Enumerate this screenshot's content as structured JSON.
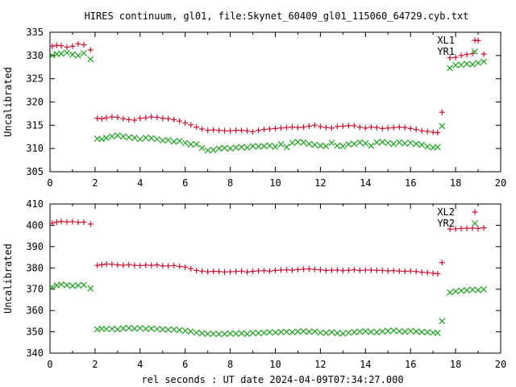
{
  "title": "HIRES continuum, gl01, file:Skynet_60409_gl01_115060_64729.cyb.txt",
  "colors": {
    "red": "#c8102e",
    "green": "#1fa01f"
  },
  "chart_data": [
    {
      "type": "scatter",
      "title": "HIRES continuum, gl01, file:Skynet_60409_gl01_115060_64729.cyb.txt",
      "xlabel": "",
      "ylabel": "Uncalibrated",
      "xlim": [
        0,
        20
      ],
      "ylim": [
        305,
        335
      ],
      "xticks": [
        0,
        2,
        4,
        6,
        8,
        10,
        12,
        14,
        16,
        18,
        20
      ],
      "yticks": [
        305,
        310,
        315,
        320,
        325,
        330,
        335
      ],
      "legend": "top-right",
      "grid": false,
      "series": [
        {
          "name": "XL1",
          "marker": "plus",
          "color": "#c8102e",
          "x": [
            0.1,
            0.3,
            0.5,
            0.75,
            1.0,
            1.25,
            1.5,
            1.8,
            2.1,
            2.3,
            2.5,
            2.75,
            3.0,
            3.25,
            3.5,
            3.75,
            4.0,
            4.25,
            4.5,
            4.75,
            5.0,
            5.25,
            5.5,
            5.75,
            6.0,
            6.25,
            6.5,
            6.75,
            7.0,
            7.25,
            7.5,
            7.75,
            8.0,
            8.25,
            8.5,
            8.75,
            9.0,
            9.25,
            9.5,
            9.75,
            10.0,
            10.25,
            10.5,
            10.75,
            11.0,
            11.25,
            11.5,
            11.75,
            12.0,
            12.25,
            12.5,
            12.75,
            13.0,
            13.25,
            13.5,
            13.75,
            14.0,
            14.25,
            14.5,
            14.75,
            15.0,
            15.25,
            15.5,
            15.75,
            16.0,
            16.25,
            16.5,
            16.75,
            17.0,
            17.2,
            17.4,
            17.75,
            18.0,
            18.25,
            18.5,
            18.75,
            19.0,
            19.25
          ],
          "y": [
            332.0,
            332.2,
            332.1,
            331.8,
            332.0,
            332.5,
            332.3,
            331.2,
            316.5,
            316.4,
            316.6,
            316.8,
            316.7,
            316.4,
            316.2,
            316.1,
            316.5,
            316.6,
            316.8,
            316.7,
            316.5,
            316.4,
            316.2,
            315.9,
            315.5,
            315.1,
            314.6,
            314.2,
            313.9,
            314.0,
            313.9,
            313.8,
            313.8,
            313.9,
            313.9,
            313.8,
            313.6,
            313.9,
            314.1,
            314.2,
            314.3,
            314.4,
            314.5,
            314.6,
            314.5,
            314.6,
            314.8,
            315.0,
            314.7,
            314.5,
            314.4,
            314.7,
            314.8,
            314.9,
            314.9,
            314.6,
            314.4,
            314.6,
            314.5,
            314.3,
            314.4,
            314.5,
            314.6,
            314.5,
            314.3,
            314.1,
            313.8,
            313.7,
            313.5,
            313.4,
            317.8,
            329.5,
            329.6,
            330.0,
            330.2,
            330.4,
            333.2,
            330.3
          ]
        },
        {
          "name": "YR1",
          "marker": "cross",
          "color": "#1fa01f",
          "x": [
            0.1,
            0.3,
            0.5,
            0.75,
            1.0,
            1.25,
            1.5,
            1.8,
            2.1,
            2.3,
            2.5,
            2.75,
            3.0,
            3.25,
            3.5,
            3.75,
            4.0,
            4.25,
            4.5,
            4.75,
            5.0,
            5.25,
            5.5,
            5.75,
            6.0,
            6.25,
            6.5,
            6.75,
            7.0,
            7.25,
            7.5,
            7.75,
            8.0,
            8.25,
            8.5,
            8.75,
            9.0,
            9.25,
            9.5,
            9.75,
            10.0,
            10.25,
            10.5,
            10.75,
            11.0,
            11.25,
            11.5,
            11.75,
            12.0,
            12.25,
            12.5,
            12.75,
            13.0,
            13.25,
            13.5,
            13.75,
            14.0,
            14.25,
            14.5,
            14.75,
            15.0,
            15.25,
            15.5,
            15.75,
            16.0,
            16.25,
            16.5,
            16.75,
            17.0,
            17.2,
            17.4,
            17.75,
            18.0,
            18.25,
            18.5,
            18.75,
            19.0,
            19.25
          ],
          "y": [
            330.0,
            330.3,
            330.4,
            330.6,
            330.2,
            330.0,
            330.5,
            329.2,
            312.1,
            312.0,
            312.3,
            312.6,
            312.8,
            312.6,
            312.4,
            312.3,
            312.0,
            312.3,
            312.2,
            312.0,
            311.7,
            311.8,
            311.5,
            311.6,
            311.2,
            310.9,
            310.9,
            310.1,
            309.6,
            309.7,
            310.0,
            310.1,
            310.0,
            310.2,
            310.3,
            310.2,
            310.5,
            310.4,
            310.5,
            310.6,
            310.4,
            310.9,
            310.3,
            311.2,
            311.4,
            311.3,
            311.0,
            310.8,
            310.6,
            310.5,
            311.2,
            310.6,
            310.5,
            310.9,
            311.0,
            311.3,
            311.1,
            310.6,
            311.3,
            311.4,
            311.2,
            311.0,
            311.3,
            311.1,
            311.2,
            311.0,
            310.8,
            310.4,
            310.2,
            310.3,
            314.8,
            327.3,
            327.9,
            328.0,
            328.2,
            328.1,
            328.4,
            328.7
          ]
        }
      ]
    },
    {
      "type": "scatter",
      "title": "",
      "xlabel": "rel seconds : UT date 2024-04-09T07:34:27.000",
      "ylabel": "Uncalibrated",
      "xlim": [
        0,
        20
      ],
      "ylim": [
        340,
        410
      ],
      "xticks": [
        0,
        2,
        4,
        6,
        8,
        10,
        12,
        14,
        16,
        18,
        20
      ],
      "yticks": [
        340,
        350,
        360,
        370,
        380,
        390,
        400,
        410
      ],
      "legend": "top-right",
      "grid": false,
      "series": [
        {
          "name": "XL2",
          "marker": "plus",
          "color": "#c8102e",
          "x": [
            0.1,
            0.3,
            0.5,
            0.75,
            1.0,
            1.25,
            1.5,
            1.8,
            2.1,
            2.3,
            2.5,
            2.75,
            3.0,
            3.25,
            3.5,
            3.75,
            4.0,
            4.25,
            4.5,
            4.75,
            5.0,
            5.25,
            5.5,
            5.75,
            6.0,
            6.25,
            6.5,
            6.75,
            7.0,
            7.25,
            7.5,
            7.75,
            8.0,
            8.25,
            8.5,
            8.75,
            9.0,
            9.25,
            9.5,
            9.75,
            10.0,
            10.25,
            10.5,
            10.75,
            11.0,
            11.25,
            11.5,
            11.75,
            12.0,
            12.25,
            12.5,
            12.75,
            13.0,
            13.25,
            13.5,
            13.75,
            14.0,
            14.25,
            14.5,
            14.75,
            15.0,
            15.25,
            15.5,
            15.75,
            16.0,
            16.25,
            16.5,
            16.75,
            17.0,
            17.2,
            17.4,
            17.75,
            18.0,
            18.25,
            18.5,
            18.75,
            19.0,
            19.25
          ],
          "y": [
            401.0,
            401.5,
            401.8,
            401.6,
            401.7,
            401.4,
            401.5,
            400.6,
            381.2,
            381.5,
            381.8,
            381.7,
            381.4,
            381.3,
            381.5,
            381.2,
            381.1,
            381.3,
            381.2,
            381.4,
            381.0,
            380.9,
            381.1,
            380.7,
            380.4,
            379.6,
            378.8,
            378.5,
            378.2,
            378.4,
            378.3,
            378.1,
            378.2,
            378.3,
            378.5,
            378.1,
            378.4,
            378.6,
            378.7,
            378.5,
            378.8,
            379.0,
            379.1,
            378.9,
            379.2,
            379.4,
            379.5,
            379.3,
            379.1,
            378.8,
            378.9,
            379.0,
            378.7,
            378.9,
            379.1,
            378.8,
            379.0,
            379.0,
            378.9,
            378.8,
            378.6,
            378.7,
            378.5,
            378.4,
            378.5,
            378.3,
            378.0,
            377.8,
            377.5,
            377.3,
            382.5,
            398.2,
            398.3,
            398.5,
            398.6,
            398.7,
            398.5,
            398.8
          ]
        },
        {
          "name": "YR2",
          "marker": "cross",
          "color": "#1fa01f",
          "x": [
            0.1,
            0.3,
            0.5,
            0.75,
            1.0,
            1.25,
            1.5,
            1.8,
            2.1,
            2.3,
            2.5,
            2.75,
            3.0,
            3.25,
            3.5,
            3.75,
            4.0,
            4.25,
            4.5,
            4.75,
            5.0,
            5.25,
            5.5,
            5.75,
            6.0,
            6.25,
            6.5,
            6.75,
            7.0,
            7.25,
            7.5,
            7.75,
            8.0,
            8.25,
            8.5,
            8.75,
            9.0,
            9.25,
            9.5,
            9.75,
            10.0,
            10.25,
            10.5,
            10.75,
            11.0,
            11.25,
            11.5,
            11.75,
            12.0,
            12.25,
            12.5,
            12.75,
            13.0,
            13.25,
            13.5,
            13.75,
            14.0,
            14.25,
            14.5,
            14.75,
            15.0,
            15.25,
            15.5,
            15.75,
            16.0,
            16.25,
            16.5,
            16.75,
            17.0,
            17.2,
            17.4,
            17.75,
            18.0,
            18.25,
            18.5,
            18.75,
            19.0,
            19.25
          ],
          "y": [
            371.0,
            371.8,
            372.2,
            371.9,
            371.6,
            371.8,
            372.0,
            370.4,
            351.2,
            351.5,
            351.3,
            351.4,
            351.2,
            351.6,
            351.8,
            351.5,
            351.7,
            351.4,
            351.5,
            351.3,
            351.2,
            351.0,
            351.1,
            350.8,
            350.5,
            350.2,
            349.6,
            349.3,
            349.0,
            349.1,
            348.9,
            349.0,
            349.2,
            349.1,
            349.3,
            349.0,
            349.5,
            349.4,
            349.6,
            349.8,
            349.7,
            349.9,
            350.0,
            349.8,
            350.1,
            350.3,
            350.0,
            350.2,
            349.6,
            349.5,
            349.8,
            349.4,
            349.2,
            349.6,
            349.9,
            350.1,
            350.3,
            350.0,
            349.8,
            350.2,
            350.4,
            350.6,
            350.3,
            350.1,
            350.4,
            350.2,
            349.9,
            349.8,
            349.6,
            349.5,
            355.0,
            368.5,
            369.0,
            369.3,
            369.5,
            369.8,
            369.6,
            369.9
          ]
        }
      ]
    }
  ]
}
